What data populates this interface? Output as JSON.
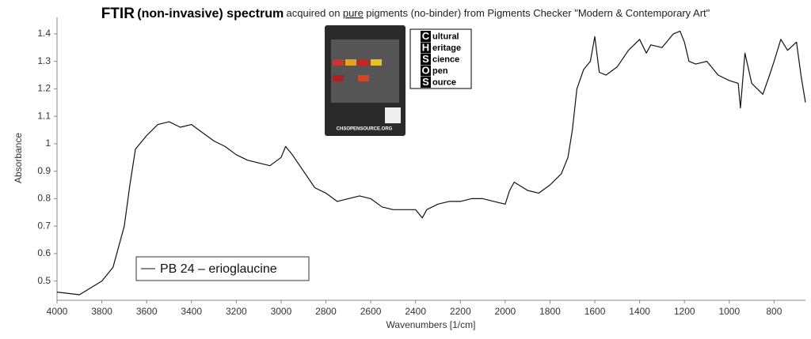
{
  "chart_data": {
    "type": "line",
    "title": [
      "FTIR",
      "(non-invasive) spectrum",
      "acquired on",
      "pure",
      "pigments (no-binder) from Pigments Checker \"Modern & Contemporary Art\""
    ],
    "x_label": "Wavenumbers [1/cm]",
    "y_label": "Absorbance",
    "legend_position": "lower-left",
    "xlim": [
      4000,
      660
    ],
    "ylim": [
      0.43,
      1.46
    ],
    "xticks": [
      4000,
      3800,
      3600,
      3400,
      3200,
      3000,
      2800,
      2600,
      2400,
      2200,
      2000,
      1800,
      1600,
      1400,
      1200,
      1000,
      800
    ],
    "yticks": [
      0.5,
      0.6,
      0.7,
      0.8,
      0.9,
      1,
      1.1,
      1.2,
      1.3,
      1.4
    ],
    "x": [
      4000,
      3900,
      3800,
      3750,
      3700,
      3675,
      3650,
      3600,
      3550,
      3500,
      3450,
      3400,
      3350,
      3300,
      3250,
      3200,
      3150,
      3100,
      3050,
      3000,
      2980,
      2950,
      2900,
      2850,
      2800,
      2750,
      2700,
      2650,
      2600,
      2550,
      2500,
      2450,
      2400,
      2370,
      2350,
      2300,
      2250,
      2200,
      2150,
      2100,
      2050,
      2000,
      1980,
      1960,
      1900,
      1850,
      1800,
      1750,
      1720,
      1700,
      1680,
      1650,
      1620,
      1600,
      1580,
      1550,
      1500,
      1450,
      1400,
      1370,
      1350,
      1300,
      1250,
      1220,
      1200,
      1180,
      1150,
      1100,
      1050,
      1000,
      960,
      950,
      930,
      900,
      850,
      820,
      800,
      770,
      740,
      700,
      680,
      660
    ],
    "series": [
      {
        "name": "PB 24 – erioglaucine",
        "color": "#111111",
        "values": [
          0.46,
          0.45,
          0.5,
          0.55,
          0.7,
          0.85,
          0.98,
          1.03,
          1.07,
          1.08,
          1.06,
          1.07,
          1.04,
          1.01,
          0.99,
          0.96,
          0.94,
          0.93,
          0.92,
          0.95,
          0.99,
          0.96,
          0.9,
          0.84,
          0.82,
          0.79,
          0.8,
          0.81,
          0.8,
          0.77,
          0.76,
          0.76,
          0.76,
          0.73,
          0.76,
          0.78,
          0.79,
          0.79,
          0.8,
          0.8,
          0.79,
          0.78,
          0.83,
          0.86,
          0.83,
          0.82,
          0.85,
          0.89,
          0.95,
          1.05,
          1.2,
          1.27,
          1.3,
          1.39,
          1.26,
          1.25,
          1.28,
          1.34,
          1.38,
          1.33,
          1.36,
          1.35,
          1.4,
          1.41,
          1.37,
          1.3,
          1.29,
          1.3,
          1.25,
          1.23,
          1.22,
          1.13,
          1.33,
          1.22,
          1.18,
          1.25,
          1.3,
          1.38,
          1.34,
          1.37,
          1.25,
          1.15
        ]
      }
    ]
  },
  "logo": {
    "letters": [
      "C",
      "H",
      "S",
      "O",
      "S"
    ],
    "words": [
      "ultural",
      "eritage",
      "cience",
      "pen",
      "ource"
    ],
    "card_caption": "CHSOPENSOURCE.ORG"
  }
}
